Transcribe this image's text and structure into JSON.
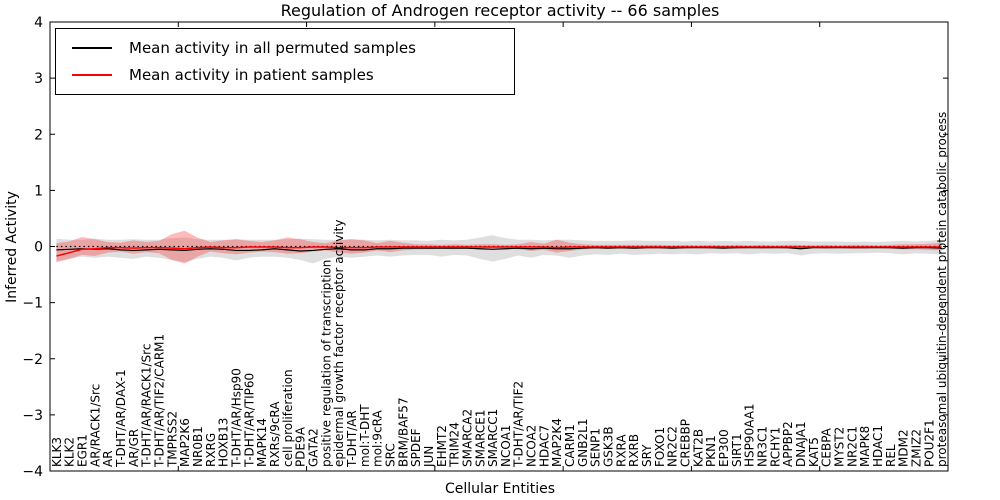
{
  "chart_data": {
    "type": "line",
    "title": "Regulation of Androgen receptor activity -- 66 samples",
    "xlabel": "Cellular Entities",
    "ylabel": "Inferred Activity",
    "ylim": [
      -4,
      4
    ],
    "yticks": [
      4,
      3,
      2,
      1,
      0,
      -1,
      -2,
      -3,
      -4
    ],
    "xticks_major": [
      0,
      10,
      20,
      30,
      40,
      50,
      60,
      70
    ],
    "x_range": [
      0,
      70
    ],
    "grid": false,
    "legend_position": "upper left",
    "zero_reference_line": {
      "y": 0,
      "style": "dotted",
      "color": "#000000"
    },
    "categories": [
      "KLK3",
      "KLK2",
      "EGR1",
      "AR/RACK1/Src",
      "AR",
      "T-DHT/AR/DAX-1",
      "AR/GR",
      "T-DHT/AR/RACK1/Src",
      "T-DHT/AR/TIF2/CARM1",
      "TMPRSS2",
      "MAP2K6",
      "NR0B1",
      "RXRG",
      "HOXB13",
      "T-DHT/AR/Hsp90",
      "T-DHT/AR/TIP60",
      "MAPK14",
      "RXRs/9cRA",
      "cell proliferation",
      "PDE9A",
      "GATA2",
      "positive regulation of transcription",
      "epidermal growth factor receptor activity",
      "T-DHT/AR",
      "mol:T-DHT",
      "mol:9cRA",
      "SRC",
      "BRM/BAF57",
      "SPDEF",
      "JUN",
      "EHMT2",
      "TRIM24",
      "SMARCA2",
      "SMARCE1",
      "SMARCC1",
      "NCOA1",
      "T-DHT/AR/TIF2",
      "NCOA2",
      "HDAC7",
      "MAP2K4",
      "CARM1",
      "GNB2L1",
      "SENP1",
      "GSK3B",
      "RXRA",
      "RXRB",
      "SRY",
      "FOXO1",
      "NR2C2",
      "CREBBP",
      "KAT2B",
      "PKN1",
      "EP300",
      "SIRT1",
      "HSP90AA1",
      "NR3C1",
      "RCHY1",
      "APPBP2",
      "DNAJA1",
      "KAT5",
      "CEBPA",
      "MYST2",
      "NR2C1",
      "MAPK8",
      "HDAC1",
      "REL",
      "MDM2",
      "ZMIZ2",
      "POU2F1",
      "proteasomal ubiquitin-dependent protein catabolic process"
    ],
    "series": [
      {
        "name": "Mean activity in all permuted samples",
        "color": "#000000",
        "band_color": "#8c8c8c",
        "band_opacity": 0.28,
        "values": [
          -0.06,
          -0.05,
          -0.04,
          -0.05,
          -0.04,
          -0.06,
          -0.07,
          -0.06,
          -0.05,
          -0.06,
          -0.07,
          -0.05,
          -0.04,
          -0.05,
          -0.07,
          -0.07,
          -0.06,
          -0.04,
          -0.06,
          -0.08,
          -0.07,
          -0.05,
          -0.04,
          -0.06,
          -0.06,
          -0.04,
          -0.04,
          -0.03,
          -0.03,
          -0.03,
          -0.03,
          -0.03,
          -0.03,
          -0.04,
          -0.05,
          -0.04,
          -0.03,
          -0.04,
          -0.03,
          -0.04,
          -0.04,
          -0.03,
          -0.02,
          -0.03,
          -0.02,
          -0.03,
          -0.02,
          -0.02,
          -0.03,
          -0.02,
          -0.02,
          -0.02,
          -0.03,
          -0.02,
          -0.02,
          -0.02,
          -0.02,
          -0.02,
          -0.04,
          -0.02,
          -0.02,
          -0.02,
          -0.02,
          -0.02,
          -0.02,
          -0.02,
          -0.03,
          -0.02,
          -0.02,
          -0.03
        ],
        "band_upper": [
          0.14,
          0.12,
          0.12,
          0.14,
          0.12,
          0.12,
          0.13,
          0.12,
          0.12,
          0.15,
          0.16,
          0.13,
          0.12,
          0.12,
          0.13,
          0.12,
          0.12,
          0.12,
          0.13,
          0.14,
          0.13,
          0.12,
          0.12,
          0.13,
          0.12,
          0.11,
          0.12,
          0.11,
          0.11,
          0.1,
          0.12,
          0.11,
          0.12,
          0.16,
          0.2,
          0.15,
          0.12,
          0.12,
          0.11,
          0.12,
          0.12,
          0.11,
          0.1,
          0.1,
          0.1,
          0.11,
          0.1,
          0.1,
          0.1,
          0.09,
          0.1,
          0.09,
          0.1,
          0.09,
          0.1,
          0.09,
          0.09,
          0.1,
          0.1,
          0.09,
          0.09,
          0.09,
          0.08,
          0.09,
          0.08,
          0.09,
          0.1,
          0.09,
          0.1,
          0.12
        ],
        "band_lower": [
          -0.26,
          -0.22,
          -0.18,
          -0.2,
          -0.18,
          -0.2,
          -0.22,
          -0.18,
          -0.2,
          -0.24,
          -0.28,
          -0.22,
          -0.18,
          -0.2,
          -0.25,
          -0.2,
          -0.18,
          -0.18,
          -0.2,
          -0.24,
          -0.3,
          -0.22,
          -0.18,
          -0.2,
          -0.18,
          -0.16,
          -0.18,
          -0.16,
          -0.15,
          -0.15,
          -0.18,
          -0.15,
          -0.16,
          -0.22,
          -0.27,
          -0.22,
          -0.16,
          -0.2,
          -0.15,
          -0.16,
          -0.2,
          -0.16,
          -0.14,
          -0.15,
          -0.13,
          -0.15,
          -0.14,
          -0.13,
          -0.14,
          -0.13,
          -0.14,
          -0.12,
          -0.13,
          -0.12,
          -0.14,
          -0.12,
          -0.13,
          -0.12,
          -0.16,
          -0.13,
          -0.12,
          -0.13,
          -0.12,
          -0.12,
          -0.11,
          -0.12,
          -0.14,
          -0.12,
          -0.13,
          -0.14
        ]
      },
      {
        "name": "Mean activity in patient samples",
        "color": "#ff0000",
        "band_color": "#ff2a2a",
        "band_opacity": 0.32,
        "values": [
          -0.17,
          -0.11,
          -0.05,
          -0.04,
          -0.02,
          -0.02,
          -0.03,
          -0.02,
          -0.02,
          -0.03,
          -0.04,
          -0.02,
          -0.01,
          -0.02,
          -0.02,
          -0.01,
          -0.01,
          -0.01,
          -0.02,
          -0.02,
          -0.01,
          -0.01,
          -0.02,
          -0.02,
          -0.02,
          -0.01,
          -0.01,
          -0.01,
          -0.01,
          -0.01,
          -0.01,
          -0.01,
          -0.01,
          -0.01,
          -0.01,
          -0.01,
          -0.01,
          -0.01,
          -0.01,
          -0.02,
          -0.01,
          -0.01,
          -0.01,
          -0.01,
          -0.01,
          -0.01,
          -0.01,
          -0.01,
          -0.01,
          -0.01,
          -0.01,
          -0.01,
          -0.01,
          -0.01,
          -0.01,
          -0.01,
          -0.01,
          -0.01,
          -0.01,
          -0.01,
          -0.01,
          -0.01,
          -0.01,
          -0.01,
          -0.01,
          -0.01,
          -0.01,
          -0.01,
          -0.01,
          -0.01
        ],
        "band_upper": [
          0.06,
          0.09,
          0.17,
          0.13,
          0.08,
          0.07,
          0.11,
          0.08,
          0.1,
          0.22,
          0.28,
          0.16,
          0.08,
          0.11,
          0.13,
          0.1,
          0.08,
          0.11,
          0.16,
          0.13,
          0.08,
          0.06,
          0.11,
          0.13,
          0.11,
          0.06,
          0.1,
          0.07,
          0.04,
          0.04,
          0.03,
          0.04,
          0.03,
          0.04,
          0.04,
          0.03,
          0.04,
          0.08,
          0.05,
          0.12,
          0.07,
          0.04,
          0.03,
          0.03,
          0.03,
          0.03,
          0.03,
          0.03,
          0.02,
          0.03,
          0.02,
          0.03,
          0.02,
          0.03,
          0.02,
          0.03,
          0.02,
          0.03,
          0.03,
          0.02,
          0.03,
          0.02,
          0.03,
          0.03,
          0.02,
          0.03,
          0.04,
          0.04,
          0.05,
          0.07
        ],
        "band_lower": [
          -0.28,
          -0.22,
          -0.15,
          -0.17,
          -0.11,
          -0.09,
          -0.13,
          -0.1,
          -0.12,
          -0.24,
          -0.3,
          -0.18,
          -0.09,
          -0.12,
          -0.14,
          -0.11,
          -0.09,
          -0.1,
          -0.13,
          -0.12,
          -0.09,
          -0.07,
          -0.11,
          -0.13,
          -0.11,
          -0.07,
          -0.1,
          -0.07,
          -0.05,
          -0.05,
          -0.04,
          -0.05,
          -0.04,
          -0.05,
          -0.05,
          -0.04,
          -0.05,
          -0.08,
          -0.06,
          -0.11,
          -0.08,
          -0.05,
          -0.04,
          -0.04,
          -0.04,
          -0.04,
          -0.04,
          -0.04,
          -0.03,
          -0.04,
          -0.03,
          -0.04,
          -0.03,
          -0.04,
          -0.03,
          -0.04,
          -0.03,
          -0.04,
          -0.04,
          -0.03,
          -0.04,
          -0.03,
          -0.04,
          -0.04,
          -0.03,
          -0.04,
          -0.05,
          -0.05,
          -0.06,
          -0.07
        ]
      }
    ]
  }
}
